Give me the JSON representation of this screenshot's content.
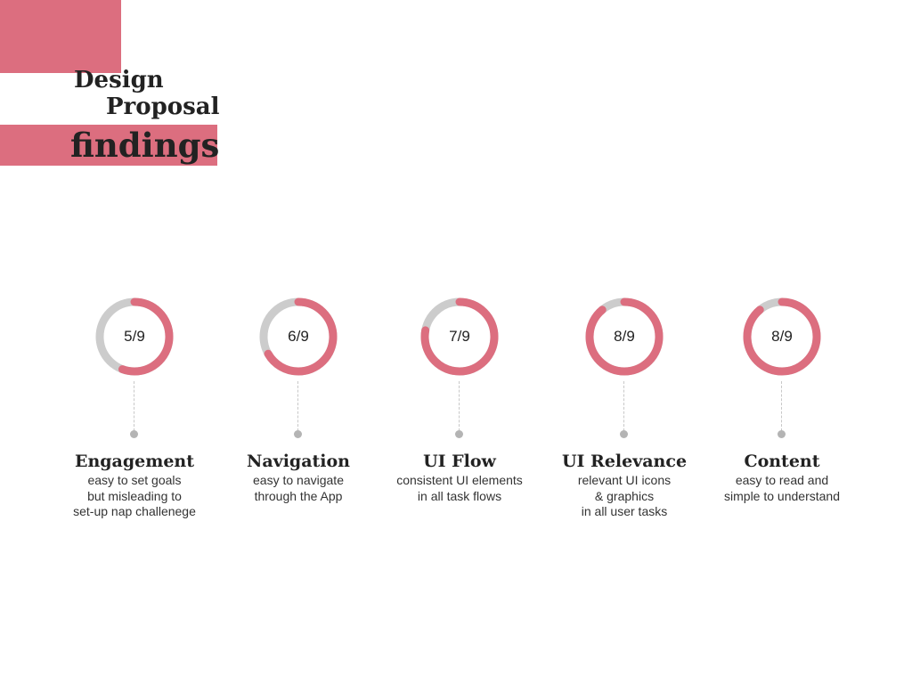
{
  "title": {
    "line1": "Design",
    "line2": "Proposal",
    "line3": "findings"
  },
  "colors": {
    "accent": "#dc6e7f",
    "track": "#cccccc",
    "text": "#222222"
  },
  "metrics": [
    {
      "score_text": "5/9",
      "score": 5,
      "max": 9,
      "title": "Engagement",
      "description": [
        "easy to set goals",
        "but misleading to",
        "set-up nap challenege"
      ]
    },
    {
      "score_text": "6/9",
      "score": 6,
      "max": 9,
      "title": "Navigation",
      "description": [
        "easy to navigate",
        "through the App"
      ]
    },
    {
      "score_text": "7/9",
      "score": 7,
      "max": 9,
      "title": "UI Flow",
      "description": [
        "consistent UI elements",
        "in all task flows"
      ]
    },
    {
      "score_text": "8/9",
      "score": 8,
      "max": 9,
      "title": "UI Relevance",
      "description": [
        "relevant UI icons",
        "& graphics",
        "in all user tasks"
      ]
    },
    {
      "score_text": "8/9",
      "score": 8,
      "max": 9,
      "title": "Content",
      "description": [
        "easy to read and",
        "simple to understand"
      ]
    }
  ]
}
